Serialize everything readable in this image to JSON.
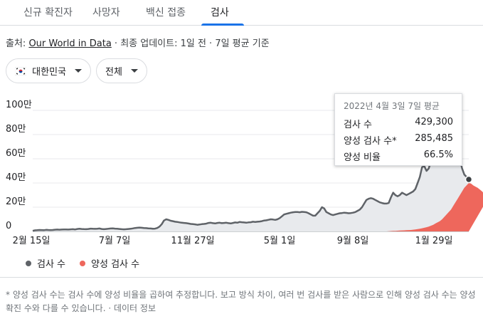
{
  "tabs": [
    {
      "label": "신규 확진자"
    },
    {
      "label": "사망자"
    },
    {
      "label": "백신 접종"
    },
    {
      "label": "검사"
    }
  ],
  "source": {
    "prefix": "출처: ",
    "link": "Our World in Data",
    "suffix": " · 최종 업데이트: 1일 전 · 7일 평균 기준"
  },
  "filters": {
    "region": "대한민국",
    "scope": "전체"
  },
  "tooltip": {
    "date": "2022년 4월 3일 7일 평균",
    "rows": [
      {
        "label": "검사 수",
        "value": "429,300"
      },
      {
        "label": "양성 검사 수*",
        "value": "285,485"
      },
      {
        "label": "양성 비율",
        "value": "66.5%"
      }
    ]
  },
  "legend": {
    "tests": "검사 수",
    "positive": "양성 검사 수"
  },
  "colors": {
    "tests": "#5f6368",
    "tests_fill": "#e8eaed",
    "positive": "#ee675c",
    "accent": "#1a73e8"
  },
  "footnote": {
    "text": "* 양성 검사 수는 검사 수에 양성 비율을 곱하여 추정합니다. 보고 방식 차이, 여러 번 검사를 받은 사람으로 인해 양성 검사 수는 양성 확진 수와 다를 수 있습니다. · ",
    "link": "데이터 정보"
  },
  "chart_data": {
    "type": "area",
    "y_ticks": [
      {
        "label": "0",
        "value": 0
      },
      {
        "label": "20만",
        "value": 200000
      },
      {
        "label": "40만",
        "value": 400000
      },
      {
        "label": "60만",
        "value": 600000
      },
      {
        "label": "80만",
        "value": 800000
      },
      {
        "label": "100만",
        "value": 1000000
      }
    ],
    "x_ticks": [
      "2월 15일",
      "7월 7일",
      "11월 27일",
      "5월 1일",
      "9월 8일",
      "1월 29일"
    ],
    "ylim": [
      0,
      1000000
    ],
    "series": [
      {
        "name": "검사 수",
        "values": [
          5000,
          9000,
          10000,
          12000,
          11000,
          10000,
          13000,
          12000,
          11000,
          12000,
          14000,
          15000,
          14000,
          15000,
          16000,
          16000,
          15000,
          17000,
          18000,
          16000,
          20000,
          22000,
          20000,
          19000,
          18000,
          20000,
          23000,
          22000,
          21000,
          22000,
          24000,
          20000,
          18000,
          20000,
          22000,
          24000,
          25000,
          23000,
          22000,
          20000,
          18000,
          17000,
          18000,
          20000,
          22000,
          25000,
          28000,
          30000,
          32000,
          30000,
          28000,
          27000,
          25000,
          24000,
          22000,
          23000,
          28000,
          40000,
          60000,
          90000,
          100000,
          95000,
          88000,
          85000,
          80000,
          78000,
          75000,
          72000,
          70000,
          68000,
          65000,
          62000,
          60000,
          58000,
          55000,
          57000,
          60000,
          62000,
          64000,
          70000,
          72000,
          68000,
          66000,
          70000,
          72000,
          68000,
          70000,
          72000,
          68000,
          66000,
          70000,
          74000,
          72000,
          78000,
          76000,
          74000,
          72000,
          75000,
          76000,
          80000,
          78000,
          80000,
          82000,
          85000,
          90000,
          92000,
          96000,
          100000,
          98000,
          95000,
          100000,
          110000,
          125000,
          140000,
          145000,
          150000,
          155000,
          158000,
          160000,
          160000,
          158000,
          162000,
          160000,
          158000,
          150000,
          140000,
          130000,
          130000,
          150000,
          170000,
          200000,
          190000,
          160000,
          150000,
          140000,
          135000,
          140000,
          145000,
          150000,
          152000,
          155000,
          153000,
          150000,
          152000,
          155000,
          160000,
          170000,
          180000,
          200000,
          230000,
          260000,
          270000,
          275000,
          270000,
          260000,
          250000,
          240000,
          235000,
          230000,
          230000,
          235000,
          280000,
          320000,
          300000,
          290000,
          300000,
          320000,
          310000,
          300000,
          310000,
          320000,
          330000,
          350000,
          400000,
          450000,
          530000,
          540000,
          500000,
          520000,
          580000,
          640000,
          620000,
          600000,
          640000,
          650000,
          640000,
          660000,
          700000,
          750000,
          820000,
          800000,
          700000,
          600000,
          520000,
          470000,
          450000,
          429300
        ]
      },
      {
        "name": "양성 검사 수",
        "values": [
          0,
          0,
          0,
          0,
          0,
          0,
          0,
          0,
          0,
          0,
          0,
          0,
          0,
          0,
          0,
          0,
          0,
          0,
          0,
          0,
          0,
          0,
          0,
          0,
          0,
          0,
          0,
          0,
          0,
          0,
          0,
          0,
          0,
          0,
          0,
          0,
          0,
          0,
          0,
          0,
          0,
          0,
          0,
          0,
          0,
          0,
          0,
          0,
          0,
          0,
          0,
          0,
          0,
          0,
          0,
          0,
          0,
          0,
          0,
          0,
          0,
          0,
          0,
          0,
          0,
          0,
          0,
          0,
          0,
          0,
          0,
          0,
          0,
          0,
          0,
          0,
          0,
          0,
          0,
          0,
          0,
          0,
          0,
          0,
          0,
          0,
          0,
          0,
          0,
          0,
          0,
          0,
          0,
          0,
          0,
          0,
          0,
          0,
          0,
          0,
          0,
          0,
          0,
          0,
          0,
          0,
          0,
          0,
          0,
          0,
          0,
          0,
          0,
          0,
          0,
          0,
          0,
          0,
          0,
          0,
          0,
          0,
          0,
          0,
          0,
          0,
          0,
          0,
          0,
          0,
          0,
          0,
          0,
          0,
          0,
          0,
          0,
          0,
          0,
          0,
          0,
          0,
          0,
          0,
          0,
          0,
          0,
          0,
          0,
          0,
          0,
          0,
          0,
          0,
          0,
          0,
          0,
          0,
          0,
          0,
          2000,
          3000,
          4000,
          5000,
          6000,
          7000,
          8000,
          9000,
          10000,
          11000,
          12000,
          14000,
          16000,
          19000,
          22000,
          26000,
          30000,
          35000,
          40000,
          47000,
          55000,
          65000,
          75000,
          85000,
          100000,
          120000,
          140000,
          160000,
          180000,
          210000,
          240000,
          270000,
          300000,
          330000,
          360000,
          380000,
          400000,
          395000,
          380000,
          370000,
          360000,
          345000,
          330000,
          310000,
          295000,
          285485
        ]
      }
    ]
  }
}
